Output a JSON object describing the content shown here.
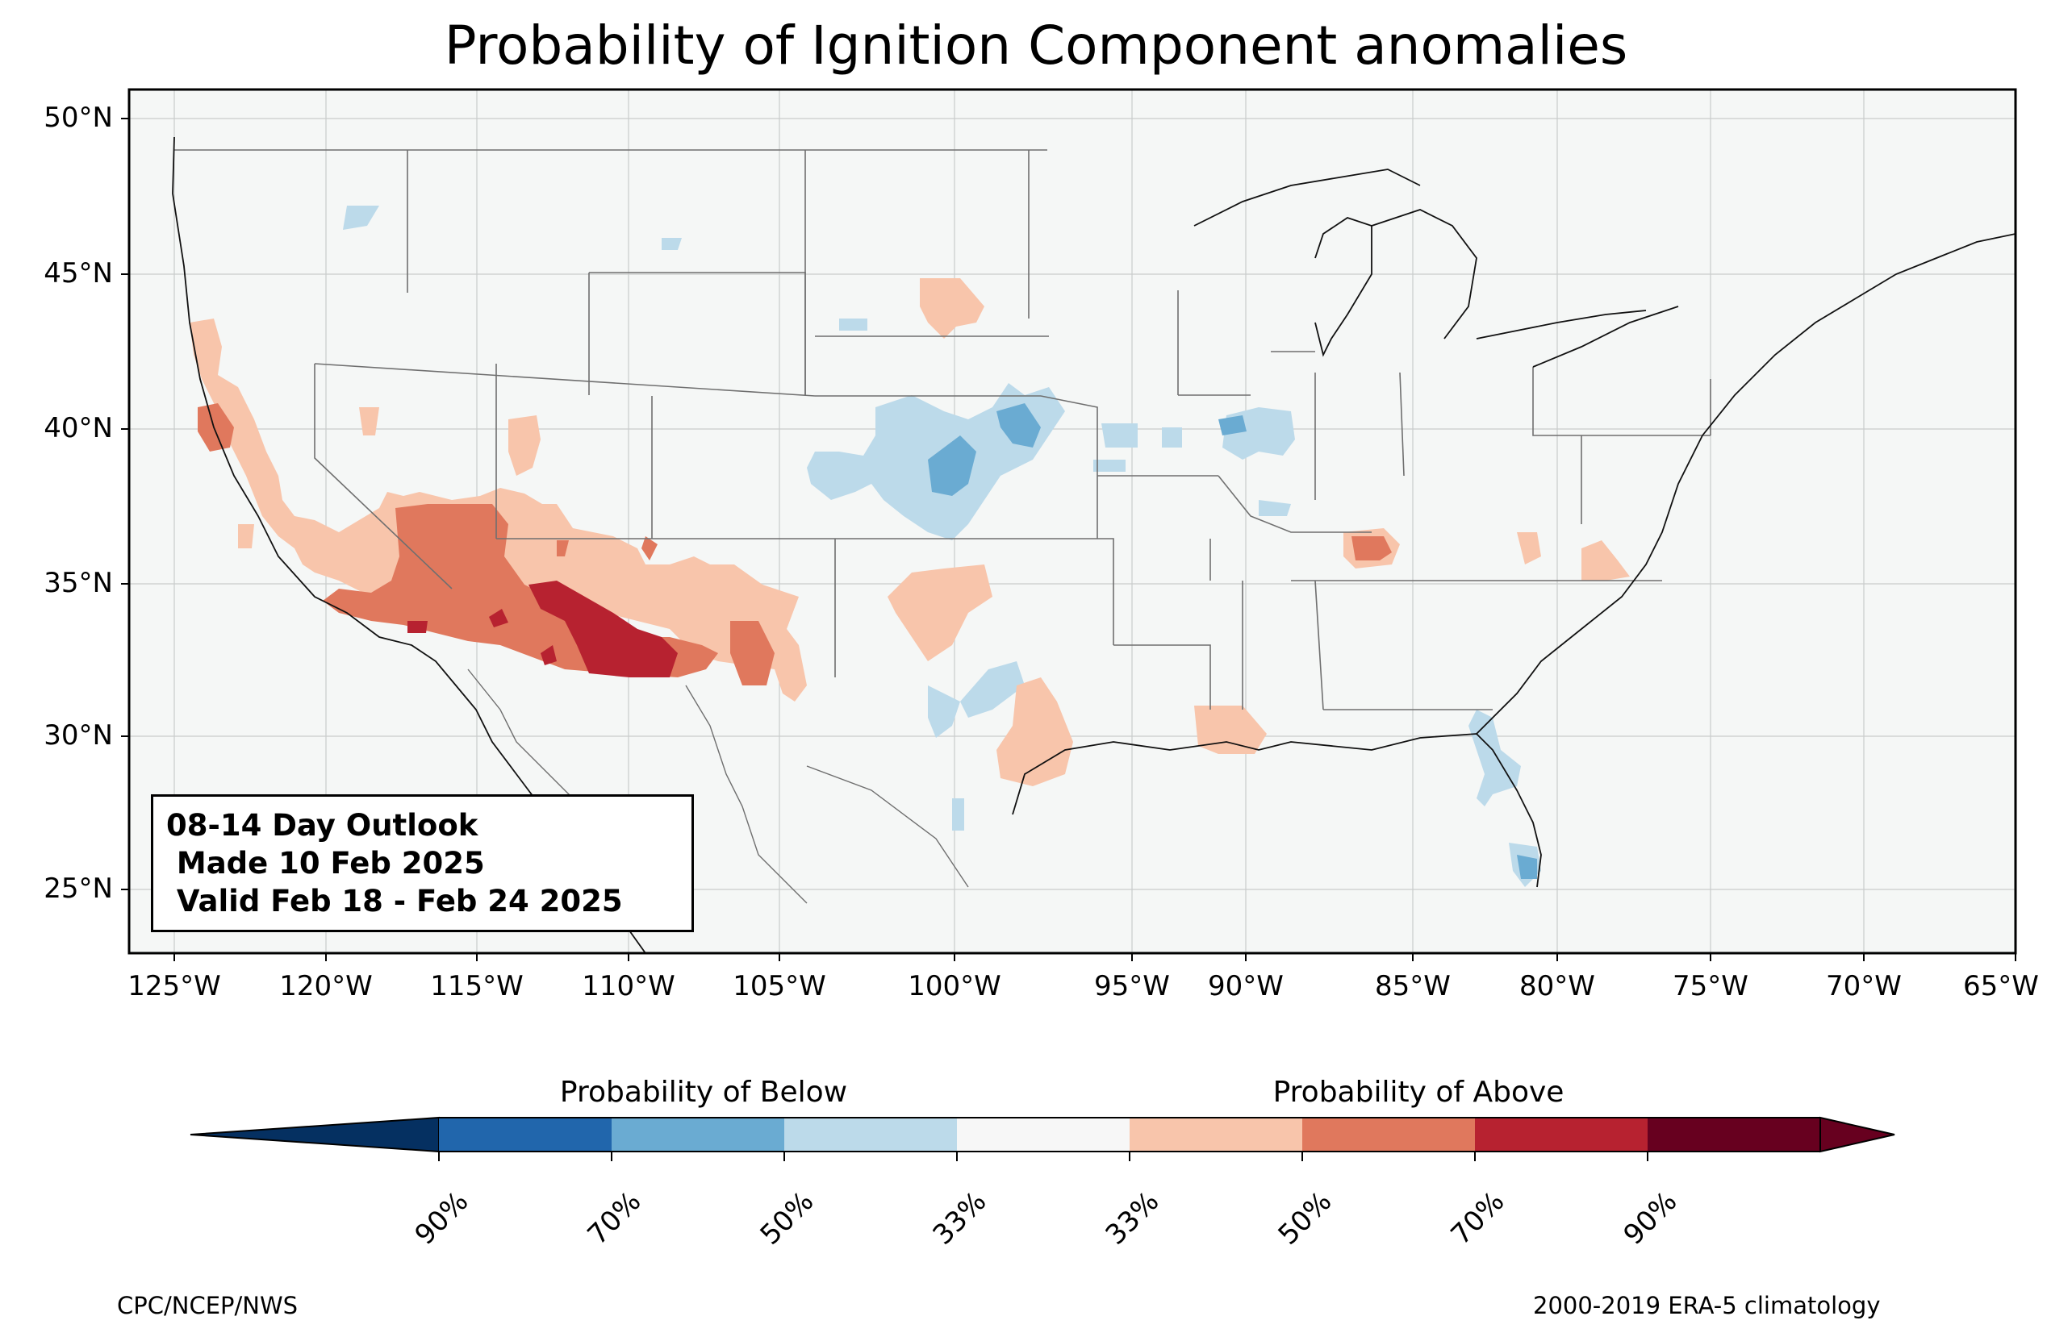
{
  "title": "Probability of Ignition Component anomalies",
  "outlook_box": {
    "line1": "08-14 Day Outlook",
    "line2": " Made 10 Feb 2025",
    "line3": " Valid Feb 18 - Feb 24 2025"
  },
  "latitude_labels": [
    "50°N",
    "45°N",
    "40°N",
    "35°N",
    "30°N",
    "25°N"
  ],
  "longitude_labels": [
    "125°W",
    "120°W",
    "115°W",
    "110°W",
    "105°W",
    "100°W",
    "95°W",
    "90°W",
    "85°W",
    "80°W",
    "75°W",
    "70°W",
    "65°W"
  ],
  "colorbar": {
    "below_label": "Probability of Below",
    "above_label": "Probability of Above",
    "tick_labels": [
      "90%",
      "70%",
      "50%",
      "33%",
      "33%",
      "50%",
      "70%",
      "90%"
    ],
    "colors": [
      "#053061",
      "#2166ac",
      "#6aabd2",
      "#bcdaea",
      "#f7f7f7",
      "#f8c5ab",
      "#e0785d",
      "#b72230",
      "#67001f"
    ]
  },
  "map_colors": {
    "background": "#f5f7f6",
    "below_33": "#bcdaea",
    "below_50": "#6aabd2",
    "above_33": "#f8c5ab",
    "above_50": "#e0785d",
    "above_70": "#b72230",
    "above_90": "#67001f"
  },
  "credit_left": "CPC/NCEP/NWS",
  "credit_right": "2000-2019 ERA-5 climatology"
}
